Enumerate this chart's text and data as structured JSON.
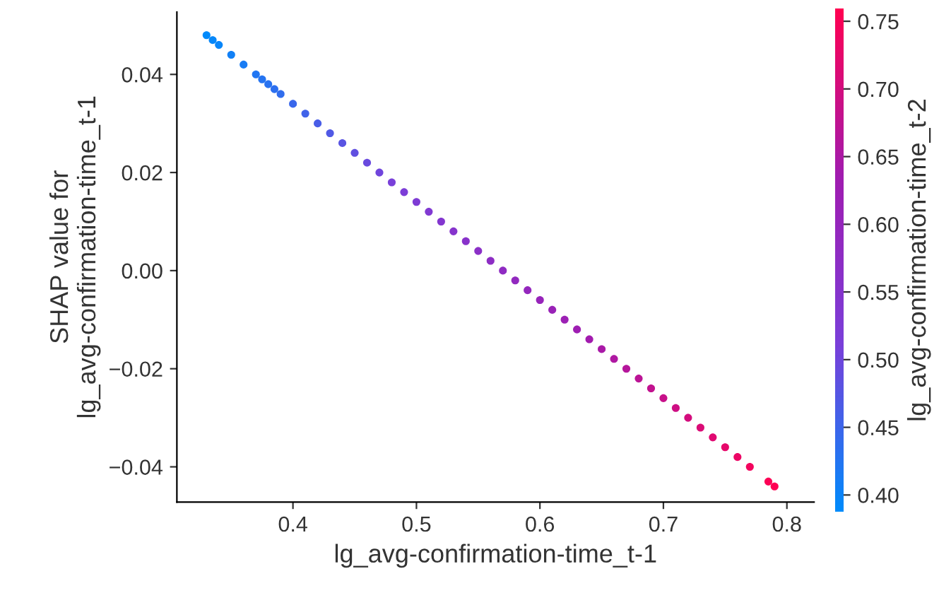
{
  "chart_data": {
    "type": "scatter",
    "xlabel": "lg_avg-confirmation-time_t-1",
    "ylabel": "SHAP value for\nlg_avg-confirmation-time_t-1",
    "clabel": "lg_avg-confirmation-time_t-2",
    "x": [
      0.33,
      0.335,
      0.34,
      0.35,
      0.36,
      0.37,
      0.375,
      0.38,
      0.385,
      0.39,
      0.4,
      0.41,
      0.42,
      0.43,
      0.44,
      0.45,
      0.46,
      0.47,
      0.48,
      0.49,
      0.5,
      0.51,
      0.52,
      0.53,
      0.54,
      0.55,
      0.56,
      0.57,
      0.58,
      0.59,
      0.6,
      0.61,
      0.62,
      0.63,
      0.64,
      0.65,
      0.66,
      0.67,
      0.68,
      0.69,
      0.7,
      0.71,
      0.72,
      0.73,
      0.74,
      0.75,
      0.76,
      0.77,
      0.785,
      0.79
    ],
    "values": [
      0.048,
      0.047,
      0.046,
      0.044,
      0.042,
      0.04,
      0.039,
      0.038,
      0.037,
      0.036,
      0.034,
      0.032,
      0.03,
      0.028,
      0.026,
      0.024,
      0.022,
      0.02,
      0.018,
      0.016,
      0.014,
      0.012,
      0.01,
      0.008,
      0.006,
      0.004,
      0.002,
      0.0,
      -0.002,
      -0.004,
      -0.006,
      -0.008,
      -0.01,
      -0.012,
      -0.014,
      -0.016,
      -0.018,
      -0.02,
      -0.022,
      -0.024,
      -0.026,
      -0.028,
      -0.03,
      -0.032,
      -0.034,
      -0.036,
      -0.038,
      -0.04,
      -0.043,
      -0.044
    ],
    "cvalues": [
      0.39,
      0.394,
      0.398,
      0.406,
      0.414,
      0.422,
      0.426,
      0.43,
      0.434,
      0.438,
      0.446,
      0.454,
      0.462,
      0.47,
      0.478,
      0.486,
      0.494,
      0.502,
      0.51,
      0.518,
      0.526,
      0.534,
      0.542,
      0.55,
      0.558,
      0.566,
      0.574,
      0.582,
      0.59,
      0.598,
      0.606,
      0.614,
      0.622,
      0.63,
      0.638,
      0.646,
      0.654,
      0.662,
      0.67,
      0.678,
      0.686,
      0.694,
      0.702,
      0.71,
      0.718,
      0.726,
      0.734,
      0.742,
      0.754,
      0.758
    ],
    "xlim": [
      0.306,
      0.822
    ],
    "xticks": [
      {
        "value": 0.4,
        "label": "0.4"
      },
      {
        "value": 0.5,
        "label": "0.5"
      },
      {
        "value": 0.6,
        "label": "0.6"
      },
      {
        "value": 0.7,
        "label": "0.7"
      },
      {
        "value": 0.8,
        "label": "0.8"
      }
    ],
    "ylim": [
      -0.0472,
      0.0527
    ],
    "yticks": [
      {
        "value": -0.04,
        "label": "−0.04"
      },
      {
        "value": -0.02,
        "label": "−0.02"
      },
      {
        "value": 0.0,
        "label": "0.00"
      },
      {
        "value": 0.02,
        "label": "0.02"
      },
      {
        "value": 0.04,
        "label": "0.04"
      }
    ],
    "clim": [
      0.388,
      0.759
    ],
    "cticks": [
      {
        "value": 0.4,
        "label": "0.40"
      },
      {
        "value": 0.45,
        "label": "0.45"
      },
      {
        "value": 0.5,
        "label": "0.50"
      },
      {
        "value": 0.55,
        "label": "0.55"
      },
      {
        "value": 0.6,
        "label": "0.60"
      },
      {
        "value": 0.65,
        "label": "0.65"
      },
      {
        "value": 0.7,
        "label": "0.70"
      },
      {
        "value": 0.75,
        "label": "0.75"
      }
    ],
    "marker": "circle",
    "grid": false,
    "legend": false
  }
}
